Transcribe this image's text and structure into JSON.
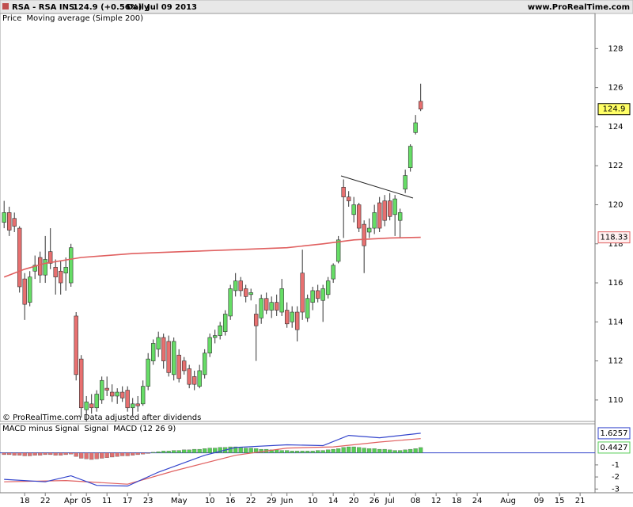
{
  "header": {
    "symbol": "RSA - RSA INS.",
    "change": "124.9 (+0.56%)",
    "period": "Daily",
    "date": "Jul 09 2013",
    "site": "www.ProRealTime.com"
  },
  "chart_data": [
    {
      "type": "candlestick",
      "legend_title": "Price",
      "footer": "© ProRealTime.com  Data adjusted after dividends",
      "up_color": "#66dd66",
      "down_color": "#e87070",
      "open": [
        119.1,
        119.6,
        119.3,
        118.8,
        116.2,
        115.0,
        116.6,
        117.3,
        116.4,
        117.6,
        116.8,
        116.6,
        116.5,
        116.0,
        114.3,
        112.1,
        109.5,
        109.8,
        109.6,
        110.0,
        110.6,
        110.4,
        110.2,
        110.4,
        110.5,
        109.6,
        109.8,
        109.8,
        110.7,
        112.0,
        112.6,
        113.2,
        113.0,
        111.3,
        112.3,
        112.0,
        111.6,
        111.2,
        110.7,
        111.3,
        112.4,
        113.2,
        113.3,
        113.5,
        114.3,
        115.6,
        116.1,
        115.7,
        115.4,
        114.4,
        114.2,
        115.2,
        114.6,
        115.0,
        114.5,
        114.6,
        114.0,
        114.5,
        116.5,
        114.2,
        115.0,
        115.6,
        115.1,
        115.4,
        116.2,
        117.1,
        120.9,
        120.4,
        119.5,
        120.0,
        119.0,
        118.6,
        118.8,
        120.1,
        120.2,
        120.2,
        119.5,
        119.2,
        120.8,
        121.9,
        123.7,
        125.3
      ],
      "high": [
        120.2,
        119.9,
        119.6,
        118.9,
        116.5,
        116.6,
        117.4,
        117.6,
        118.4,
        118.8,
        117.2,
        117.1,
        117.3,
        118.0,
        114.5,
        112.3,
        110.2,
        110.3,
        110.5,
        111.2,
        111.2,
        110.8,
        110.6,
        110.7,
        110.7,
        110.1,
        110.2,
        111.0,
        112.4,
        113.1,
        113.5,
        113.4,
        113.3,
        113.2,
        112.6,
        112.2,
        111.8,
        111.5,
        111.8,
        112.6,
        113.4,
        113.6,
        114.0,
        114.6,
        115.9,
        116.5,
        116.3,
        115.9,
        115.7,
        114.9,
        115.4,
        115.5,
        115.3,
        115.4,
        116.2,
        115.0,
        114.8,
        114.8,
        117.7,
        115.4,
        115.8,
        115.9,
        115.9,
        116.3,
        117.0,
        118.4,
        121.3,
        120.7,
        120.4,
        120.1,
        119.2,
        119.3,
        120.0,
        120.4,
        120.5,
        120.6,
        120.5,
        119.8,
        121.8,
        123.1,
        124.6,
        126.2
      ],
      "low": [
        118.8,
        118.4,
        118.6,
        115.5,
        114.1,
        114.8,
        116.2,
        116.0,
        116.0,
        116.7,
        115.4,
        115.4,
        115.6,
        115.8,
        111.0,
        109.1,
        108.9,
        109.3,
        109.4,
        109.8,
        110.2,
        109.9,
        109.8,
        109.9,
        109.4,
        109.2,
        109.4,
        109.7,
        110.5,
        111.8,
        112.2,
        111.6,
        111.2,
        111.0,
        110.9,
        111.3,
        110.6,
        110.5,
        110.6,
        111.1,
        112.2,
        112.9,
        113.1,
        113.3,
        114.1,
        115.3,
        115.3,
        115.0,
        115.1,
        112.0,
        113.9,
        114.4,
        114.2,
        114.3,
        114.3,
        113.7,
        113.7,
        113.0,
        114.1,
        114.0,
        114.6,
        115.0,
        114.0,
        115.2,
        116.0,
        117.0,
        118.3,
        119.9,
        119.1,
        118.6,
        116.5,
        118.3,
        118.5,
        118.6,
        118.9,
        119.2,
        118.4,
        118.3,
        120.6,
        121.7,
        123.6,
        124.8
      ],
      "close": [
        119.6,
        118.7,
        118.9,
        115.8,
        114.9,
        116.3,
        116.9,
        116.4,
        117.2,
        117.0,
        116.3,
        116.0,
        116.8,
        117.8,
        111.3,
        109.6,
        109.9,
        109.6,
        110.3,
        111.0,
        110.5,
        110.2,
        110.4,
        110.1,
        109.6,
        109.8,
        109.7,
        110.7,
        112.1,
        112.9,
        113.2,
        112.0,
        111.4,
        113.0,
        111.1,
        111.5,
        110.8,
        110.8,
        111.5,
        112.4,
        113.2,
        113.3,
        113.8,
        114.4,
        115.7,
        116.1,
        115.6,
        115.3,
        115.5,
        113.8,
        115.2,
        114.6,
        115.0,
        114.6,
        115.7,
        113.9,
        114.5,
        113.6,
        114.5,
        115.2,
        115.6,
        115.2,
        115.7,
        116.1,
        116.9,
        118.2,
        120.4,
        120.2,
        120.0,
        118.8,
        117.9,
        118.8,
        119.6,
        118.8,
        119.2,
        119.4,
        120.3,
        119.6,
        121.5,
        123.0,
        124.2,
        124.9
      ],
      "last_tag": 124.9,
      "overlays": [
        {
          "name": "Moving average (Simple 200)",
          "color": "#e06060",
          "x": [
            0,
            4,
            8,
            15,
            25,
            35,
            45,
            55,
            62,
            68,
            75,
            81
          ],
          "values": [
            116.3,
            116.7,
            117.0,
            117.3,
            117.5,
            117.6,
            117.7,
            117.8,
            118.0,
            118.2,
            118.3,
            118.33
          ],
          "last_tag": 118.33
        }
      ],
      "xlim": [
        -0.8,
        114.9
      ],
      "ylim": [
        108.9,
        129.8
      ],
      "yticks": [
        110,
        112,
        114,
        116,
        118,
        120,
        122,
        124,
        126,
        128
      ],
      "xticks": [
        {
          "value": 4,
          "label": "18"
        },
        {
          "value": 8,
          "label": "22"
        },
        {
          "value": 13,
          "label": "Apr"
        },
        {
          "value": 16,
          "label": "05"
        },
        {
          "value": 20,
          "label": "11"
        },
        {
          "value": 24,
          "label": "17"
        },
        {
          "value": 28,
          "label": "23"
        },
        {
          "value": 34,
          "label": "May"
        },
        {
          "value": 40,
          "label": "10"
        },
        {
          "value": 44,
          "label": "16"
        },
        {
          "value": 48,
          "label": "22"
        },
        {
          "value": 52,
          "label": "29"
        },
        {
          "value": 55,
          "label": "Jun"
        },
        {
          "value": 60,
          "label": "10"
        },
        {
          "value": 64,
          "label": "14"
        },
        {
          "value": 68,
          "label": "20"
        },
        {
          "value": 72,
          "label": "26"
        },
        {
          "value": 75,
          "label": "Jul"
        },
        {
          "value": 80,
          "label": "08"
        },
        {
          "value": 84,
          "label": "12"
        },
        {
          "value": 88,
          "label": "18"
        },
        {
          "value": 92,
          "label": "24"
        },
        {
          "value": 98,
          "label": "Aug"
        },
        {
          "value": 104,
          "label": "09"
        },
        {
          "value": 108,
          "label": "15"
        },
        {
          "value": 112,
          "label": "21"
        }
      ]
    },
    {
      "type": "macd",
      "xlim": [
        -0.8,
        114.9
      ],
      "ylim": [
        -3.31,
        2.41
      ],
      "yticks": [
        -1,
        -2,
        -3
      ],
      "series": [
        {
          "name": "MACD minus Signal",
          "type": "histogram",
          "color": "#55cc55",
          "neg_color": "#e07070",
          "values": [
            -0.15,
            -0.15,
            -0.2,
            -0.2,
            -0.25,
            -0.25,
            -0.2,
            -0.2,
            -0.15,
            -0.15,
            -0.2,
            -0.2,
            -0.15,
            -0.1,
            -0.3,
            -0.45,
            -0.5,
            -0.55,
            -0.5,
            -0.45,
            -0.4,
            -0.35,
            -0.3,
            -0.25,
            -0.25,
            -0.2,
            -0.15,
            -0.1,
            -0.05,
            0.05,
            0.1,
            0.15,
            0.15,
            0.2,
            0.2,
            0.25,
            0.25,
            0.3,
            0.3,
            0.35,
            0.4,
            0.4,
            0.45,
            0.45,
            0.5,
            0.5,
            0.45,
            0.4,
            0.4,
            0.35,
            0.3,
            0.3,
            0.25,
            0.25,
            0.2,
            0.2,
            0.15,
            0.15,
            0.15,
            0.15,
            0.15,
            0.2,
            0.2,
            0.25,
            0.3,
            0.35,
            0.45,
            0.5,
            0.5,
            0.45,
            0.4,
            0.35,
            0.35,
            0.3,
            0.3,
            0.25,
            0.2,
            0.2,
            0.25,
            0.3,
            0.35,
            0.4427
          ],
          "last_tag": 0.4427
        },
        {
          "name": "Signal",
          "type": "line",
          "color": "#e06060",
          "x": [
            0,
            12,
            24,
            33,
            45,
            55,
            64,
            73,
            81
          ],
          "values": [
            -2.4,
            -2.3,
            -2.6,
            -1.5,
            -0.2,
            0.4,
            0.5,
            0.9,
            1.183
          ]
        },
        {
          "name": "MACD (12 26 9)",
          "type": "line",
          "color": "#3344cc",
          "x": [
            0,
            8,
            13,
            18,
            24,
            30,
            39,
            45,
            55,
            62,
            67,
            73,
            81
          ],
          "values": [
            -2.2,
            -2.4,
            -1.9,
            -2.7,
            -2.75,
            -1.6,
            -0.2,
            0.45,
            0.67,
            0.6,
            1.45,
            1.25,
            1.6257
          ],
          "last_tag": 1.6257
        }
      ]
    }
  ]
}
